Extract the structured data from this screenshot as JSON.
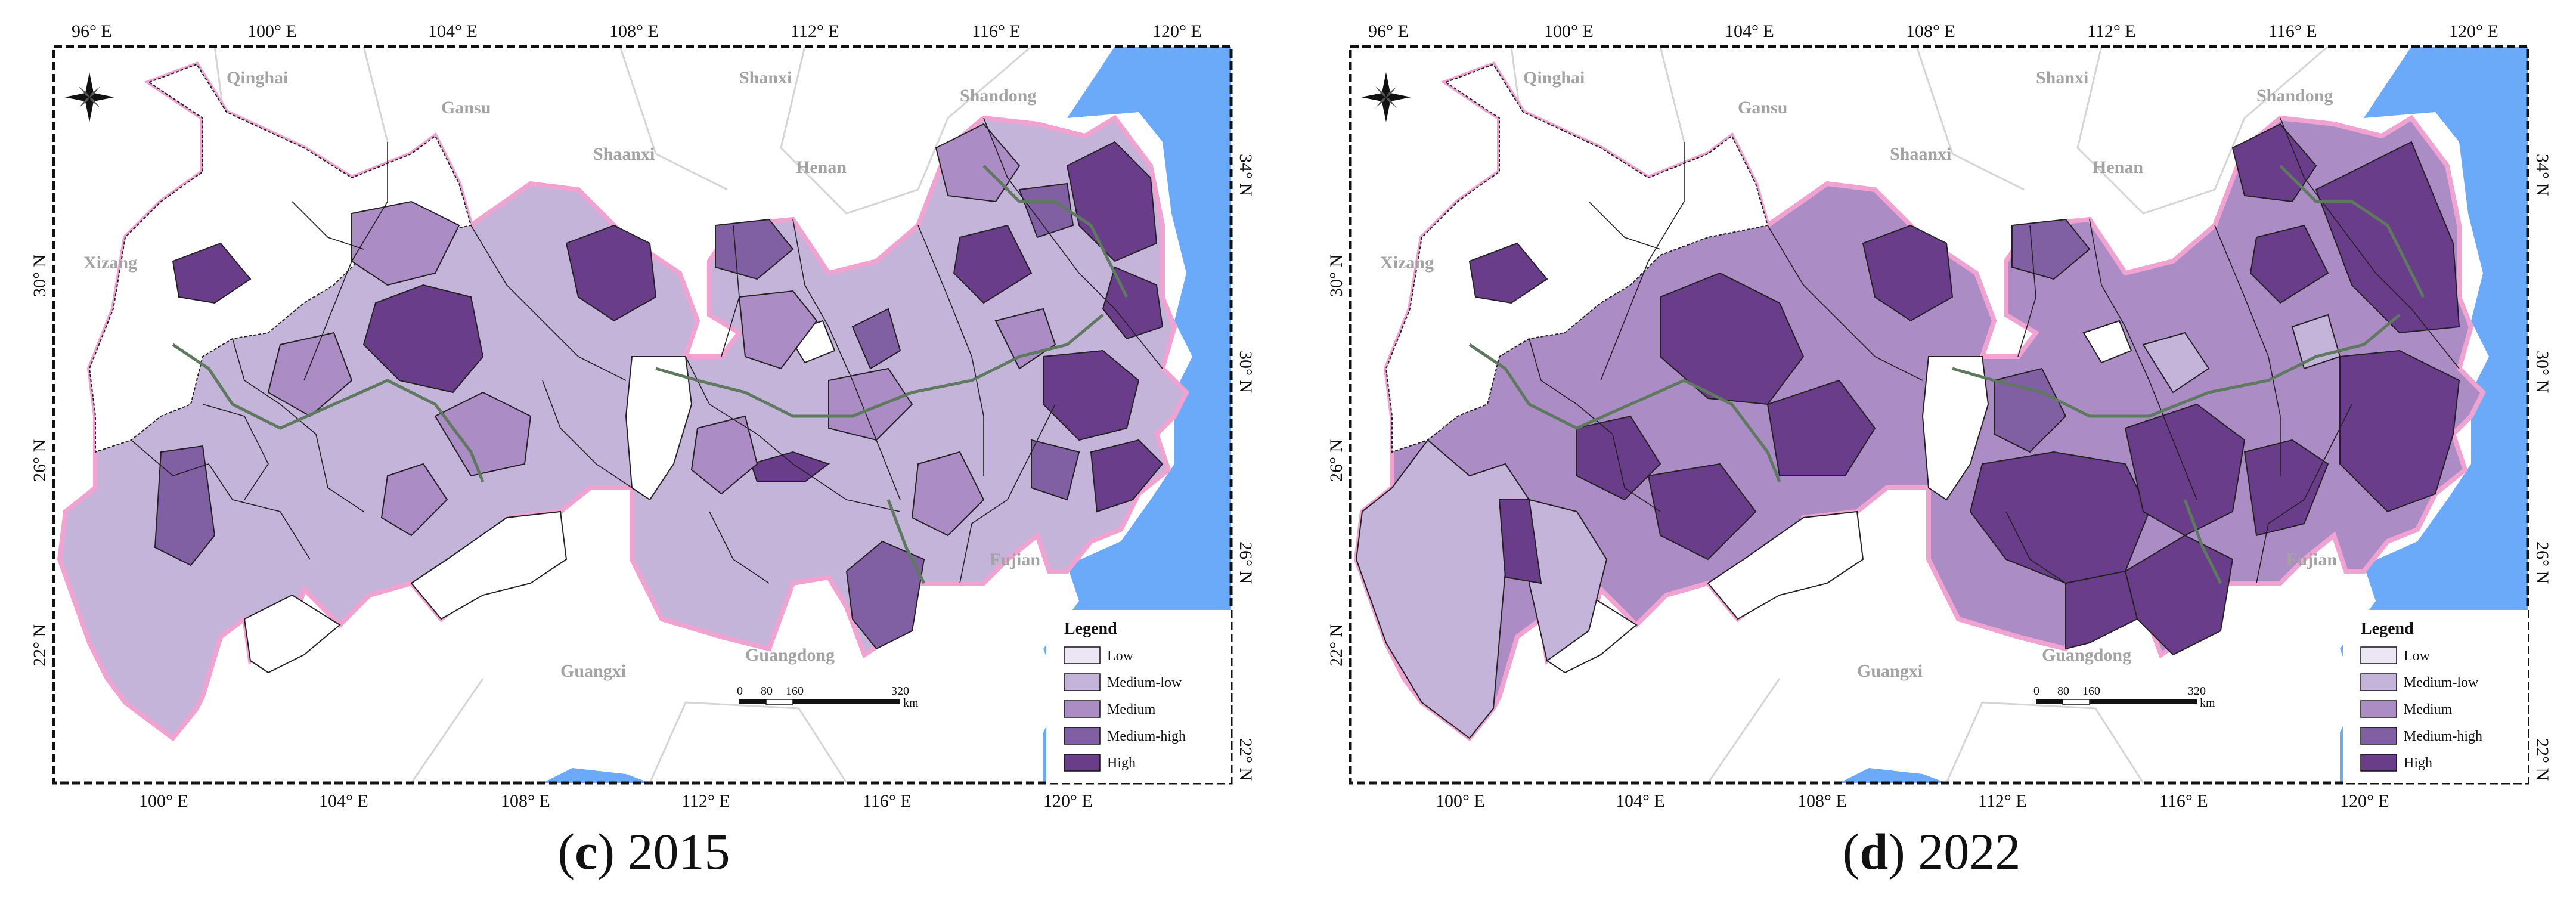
{
  "panels": [
    {
      "letter": "c",
      "year": "2015"
    },
    {
      "letter": "d",
      "year": "2022"
    }
  ],
  "top_ticks": [
    "96° E",
    "100° E",
    "104° E",
    "108° E",
    "112° E",
    "116° E",
    "120° E"
  ],
  "bottom_ticks": [
    "100° E",
    "104° E",
    "108° E",
    "112° E",
    "116° E",
    "120° E"
  ],
  "left_ticks": [
    "30° N",
    "26° N",
    "22° N"
  ],
  "right_ticks": [
    "34° N",
    "30° N",
    "26° N",
    "22° N"
  ],
  "provinces": [
    "Qinghai",
    "Gansu",
    "Shaanxi",
    "Shanxi",
    "Henan",
    "Shandong",
    "Xizang",
    "Fujian",
    "Guangdong",
    "Guangxi"
  ],
  "legend": {
    "title": "Legend",
    "classes": [
      {
        "label": "Low",
        "color": "#ece5f3"
      },
      {
        "label": "Medium-low",
        "color": "#c5b4d9"
      },
      {
        "label": "Medium",
        "color": "#ab8cc5"
      },
      {
        "label": "Medium-high",
        "color": "#815fa3"
      },
      {
        "label": "High",
        "color": "#6a3d8a"
      }
    ]
  },
  "scale_bar": {
    "ticks": [
      "0",
      "80",
      "160",
      "320"
    ],
    "unit": "km"
  },
  "colors": {
    "sea": "#6aaaf8",
    "land": "#ffffff",
    "neighbor_border": "#d5d5d5",
    "study_outline": "#f0a3d0",
    "region_border": "#5e7a5e",
    "no_data": "#ffffff"
  }
}
